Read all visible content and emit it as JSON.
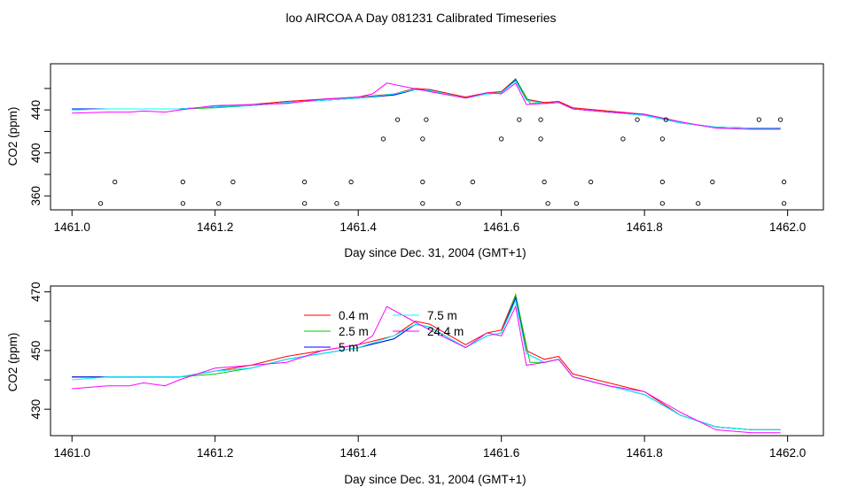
{
  "title": "loo AIRCOA A  Day 081231  Calibrated Timeseries",
  "chart_data": [
    {
      "type": "line",
      "panel": "top",
      "xlabel": "Day since Dec. 31, 2004 (GMT+1)",
      "ylabel": "CO2 (ppm)",
      "xlim": [
        1460.97,
        1462.05
      ],
      "ylim": [
        347,
        483
      ],
      "xticks": [
        1461.0,
        1461.2,
        1461.4,
        1461.6,
        1461.8,
        1462.0
      ],
      "xtick_labels": [
        "1461.0",
        "1461.2",
        "1461.4",
        "1461.6",
        "1461.8",
        "1462.0"
      ],
      "yticks": [
        360,
        400,
        440
      ],
      "ytick_labels": [
        "360",
        "400",
        "440"
      ],
      "y_minor_ticks": [
        380,
        420,
        460
      ],
      "colors": [
        "#ff0000",
        "#00cc00",
        "#0000ff",
        "#00ffff",
        "#ff00ff"
      ],
      "series": [
        {
          "x": [
            1461.0,
            1461.05,
            1461.1,
            1461.15,
            1461.2,
            1461.25,
            1461.3,
            1461.35,
            1461.4,
            1461.45,
            1461.48,
            1461.5,
            1461.55,
            1461.58,
            1461.6,
            1461.62,
            1461.635,
            1461.66,
            1461.68,
            1461.7,
            1461.75,
            1461.8,
            1461.85,
            1461.9,
            1461.95,
            1461.99
          ],
          "values": [
            441,
            441,
            441,
            441,
            443,
            445,
            448,
            450,
            452,
            455,
            460,
            459,
            452,
            456,
            457,
            469,
            450,
            447,
            448,
            442,
            439,
            436,
            428,
            424,
            423,
            423
          ]
        },
        {
          "x": [
            1461.0,
            1461.05,
            1461.1,
            1461.15,
            1461.2,
            1461.25,
            1461.3,
            1461.35,
            1461.4,
            1461.45,
            1461.48,
            1461.5,
            1461.55,
            1461.58,
            1461.6,
            1461.62,
            1461.64,
            1461.66,
            1461.68,
            1461.7,
            1461.75,
            1461.8,
            1461.85,
            1461.9,
            1461.95,
            1461.99
          ],
          "values": [
            441,
            441,
            441,
            441,
            442,
            444,
            447,
            449,
            451,
            454,
            459,
            458,
            451,
            455,
            456,
            469,
            446,
            446,
            447,
            441,
            438,
            435,
            428,
            424,
            423,
            423
          ]
        },
        {
          "x": [
            1461.0,
            1461.05,
            1461.1,
            1461.15,
            1461.2,
            1461.25,
            1461.3,
            1461.35,
            1461.4,
            1461.45,
            1461.48,
            1461.5,
            1461.55,
            1461.58,
            1461.6,
            1461.62,
            1461.635,
            1461.66,
            1461.68,
            1461.7,
            1461.75,
            1461.8,
            1461.85,
            1461.9,
            1461.95,
            1461.99
          ],
          "values": [
            441,
            441,
            441,
            441,
            443,
            444,
            447,
            449,
            451,
            454,
            459,
            458,
            451,
            455,
            456,
            468,
            449,
            446,
            447,
            441,
            438,
            435,
            428,
            424,
            423,
            423
          ]
        },
        {
          "x": [
            1461.0,
            1461.05,
            1461.1,
            1461.15,
            1461.2,
            1461.25,
            1461.3,
            1461.35,
            1461.4,
            1461.45,
            1461.48,
            1461.5,
            1461.55,
            1461.58,
            1461.6,
            1461.62,
            1461.635,
            1461.66,
            1461.68,
            1461.7,
            1461.75,
            1461.8,
            1461.85,
            1461.9,
            1461.95,
            1461.99
          ],
          "values": [
            440,
            441,
            441,
            441,
            443,
            444,
            447,
            449,
            451,
            455,
            459,
            458,
            451,
            455,
            456,
            467,
            449,
            446,
            447,
            441,
            438,
            435,
            428,
            424,
            423,
            423
          ]
        },
        {
          "x": [
            1461.0,
            1461.05,
            1461.08,
            1461.1,
            1461.13,
            1461.15,
            1461.2,
            1461.25,
            1461.3,
            1461.35,
            1461.4,
            1461.42,
            1461.44,
            1461.47,
            1461.5,
            1461.55,
            1461.58,
            1461.6,
            1461.62,
            1461.635,
            1461.66,
            1461.68,
            1461.7,
            1461.75,
            1461.8,
            1461.85,
            1461.9,
            1461.95,
            1461.99
          ],
          "values": [
            437,
            438,
            438,
            439,
            438,
            440,
            444,
            445,
            446,
            450,
            452,
            455,
            465,
            461,
            457,
            451,
            456,
            455,
            465,
            445,
            446,
            447,
            441,
            438,
            436,
            429,
            423,
            422,
            422
          ]
        }
      ],
      "flag_points": {
        "x": [
          1461.04,
          1461.06,
          1461.155,
          1461.155,
          1461.205,
          1461.225,
          1461.325,
          1461.325,
          1461.37,
          1461.39,
          1461.435,
          1461.455,
          1461.49,
          1461.49,
          1461.49,
          1461.495,
          1461.54,
          1461.56,
          1461.6,
          1461.625,
          1461.655,
          1461.655,
          1461.66,
          1461.665,
          1461.705,
          1461.725,
          1461.77,
          1461.79,
          1461.825,
          1461.825,
          1461.825,
          1461.83,
          1461.875,
          1461.895,
          1461.96,
          1461.99,
          1461.995,
          1461.995
        ],
        "y": [
          353,
          373,
          353,
          373,
          353,
          373,
          373,
          353,
          353,
          373,
          413,
          431,
          353,
          373,
          413,
          431,
          353,
          373,
          413,
          431,
          431,
          413,
          373,
          353,
          353,
          373,
          413,
          431,
          353,
          373,
          413,
          431,
          353,
          373,
          431,
          431,
          373,
          353
        ]
      }
    },
    {
      "type": "line",
      "panel": "bottom",
      "xlabel": "Day since Dec. 31, 2004 (GMT+1)",
      "ylabel": "CO2 (ppm)",
      "xlim": [
        1460.97,
        1462.05
      ],
      "ylim": [
        421,
        472
      ],
      "xticks": [
        1461.0,
        1461.2,
        1461.4,
        1461.6,
        1461.8,
        1462.0
      ],
      "xtick_labels": [
        "1461.0",
        "1461.2",
        "1461.4",
        "1461.6",
        "1461.8",
        "1462.0"
      ],
      "yticks": [
        430,
        450,
        470
      ],
      "ytick_labels": [
        "430",
        "450",
        "470"
      ],
      "y_minor_ticks": [
        440,
        460
      ],
      "legend": {
        "position": "top-center",
        "entries": [
          {
            "label": "0.4 m",
            "color": "#ff0000"
          },
          {
            "label": "2.5 m",
            "color": "#00cc00"
          },
          {
            "label": "5 m",
            "color": "#0000ff"
          },
          {
            "label": "7.5 m",
            "color": "#00ffff"
          },
          {
            "label": "24.4 m",
            "color": "#ff00ff"
          }
        ]
      },
      "series": [
        {
          "name": "0.4 m",
          "x": [
            1461.0,
            1461.05,
            1461.1,
            1461.15,
            1461.2,
            1461.25,
            1461.3,
            1461.35,
            1461.4,
            1461.45,
            1461.48,
            1461.5,
            1461.55,
            1461.58,
            1461.6,
            1461.62,
            1461.635,
            1461.66,
            1461.68,
            1461.7,
            1461.75,
            1461.8,
            1461.85,
            1461.9,
            1461.95,
            1461.99
          ],
          "values": [
            441,
            441,
            441,
            441,
            443,
            445,
            448,
            450,
            452,
            455,
            460,
            459,
            452,
            456,
            457,
            469,
            450,
            447,
            448,
            442,
            439,
            436,
            428,
            424,
            423,
            423
          ]
        },
        {
          "name": "2.5 m",
          "x": [
            1461.0,
            1461.05,
            1461.1,
            1461.15,
            1461.2,
            1461.25,
            1461.3,
            1461.35,
            1461.4,
            1461.45,
            1461.48,
            1461.5,
            1461.55,
            1461.58,
            1461.6,
            1461.62,
            1461.64,
            1461.66,
            1461.68,
            1461.7,
            1461.75,
            1461.8,
            1461.85,
            1461.9,
            1461.95,
            1461.99
          ],
          "values": [
            441,
            441,
            441,
            441,
            442,
            444,
            447,
            449,
            451,
            454,
            459,
            458,
            451,
            455,
            456,
            469,
            446,
            446,
            447,
            441,
            438,
            435,
            428,
            424,
            423,
            423
          ]
        },
        {
          "name": "5 m",
          "x": [
            1461.0,
            1461.05,
            1461.1,
            1461.15,
            1461.2,
            1461.25,
            1461.3,
            1461.35,
            1461.4,
            1461.45,
            1461.48,
            1461.5,
            1461.55,
            1461.58,
            1461.6,
            1461.62,
            1461.635,
            1461.66,
            1461.68,
            1461.7,
            1461.75,
            1461.8,
            1461.85,
            1461.9,
            1461.95,
            1461.99
          ],
          "values": [
            441,
            441,
            441,
            441,
            443,
            444,
            447,
            449,
            451,
            454,
            459,
            458,
            451,
            455,
            456,
            468,
            449,
            446,
            447,
            441,
            438,
            435,
            428,
            424,
            423,
            423
          ]
        },
        {
          "name": "7.5 m",
          "x": [
            1461.0,
            1461.05,
            1461.1,
            1461.15,
            1461.2,
            1461.25,
            1461.3,
            1461.35,
            1461.4,
            1461.45,
            1461.48,
            1461.5,
            1461.55,
            1461.58,
            1461.6,
            1461.62,
            1461.635,
            1461.66,
            1461.68,
            1461.7,
            1461.75,
            1461.8,
            1461.85,
            1461.9,
            1461.95,
            1461.99
          ],
          "values": [
            440,
            441,
            441,
            441,
            443,
            444,
            447,
            449,
            451,
            455,
            459,
            458,
            451,
            455,
            456,
            467,
            449,
            446,
            447,
            441,
            438,
            435,
            428,
            424,
            423,
            423
          ]
        },
        {
          "name": "24.4 m",
          "x": [
            1461.0,
            1461.05,
            1461.08,
            1461.1,
            1461.13,
            1461.15,
            1461.2,
            1461.25,
            1461.3,
            1461.35,
            1461.4,
            1461.42,
            1461.44,
            1461.47,
            1461.5,
            1461.55,
            1461.58,
            1461.6,
            1461.62,
            1461.635,
            1461.66,
            1461.68,
            1461.7,
            1461.75,
            1461.8,
            1461.85,
            1461.9,
            1461.95,
            1461.99
          ],
          "values": [
            437,
            438,
            438,
            439,
            438,
            440,
            444,
            445,
            446,
            450,
            452,
            455,
            465,
            461,
            457,
            451,
            456,
            455,
            465,
            445,
            446,
            447,
            441,
            438,
            436,
            429,
            423,
            422,
            422
          ]
        }
      ]
    }
  ]
}
